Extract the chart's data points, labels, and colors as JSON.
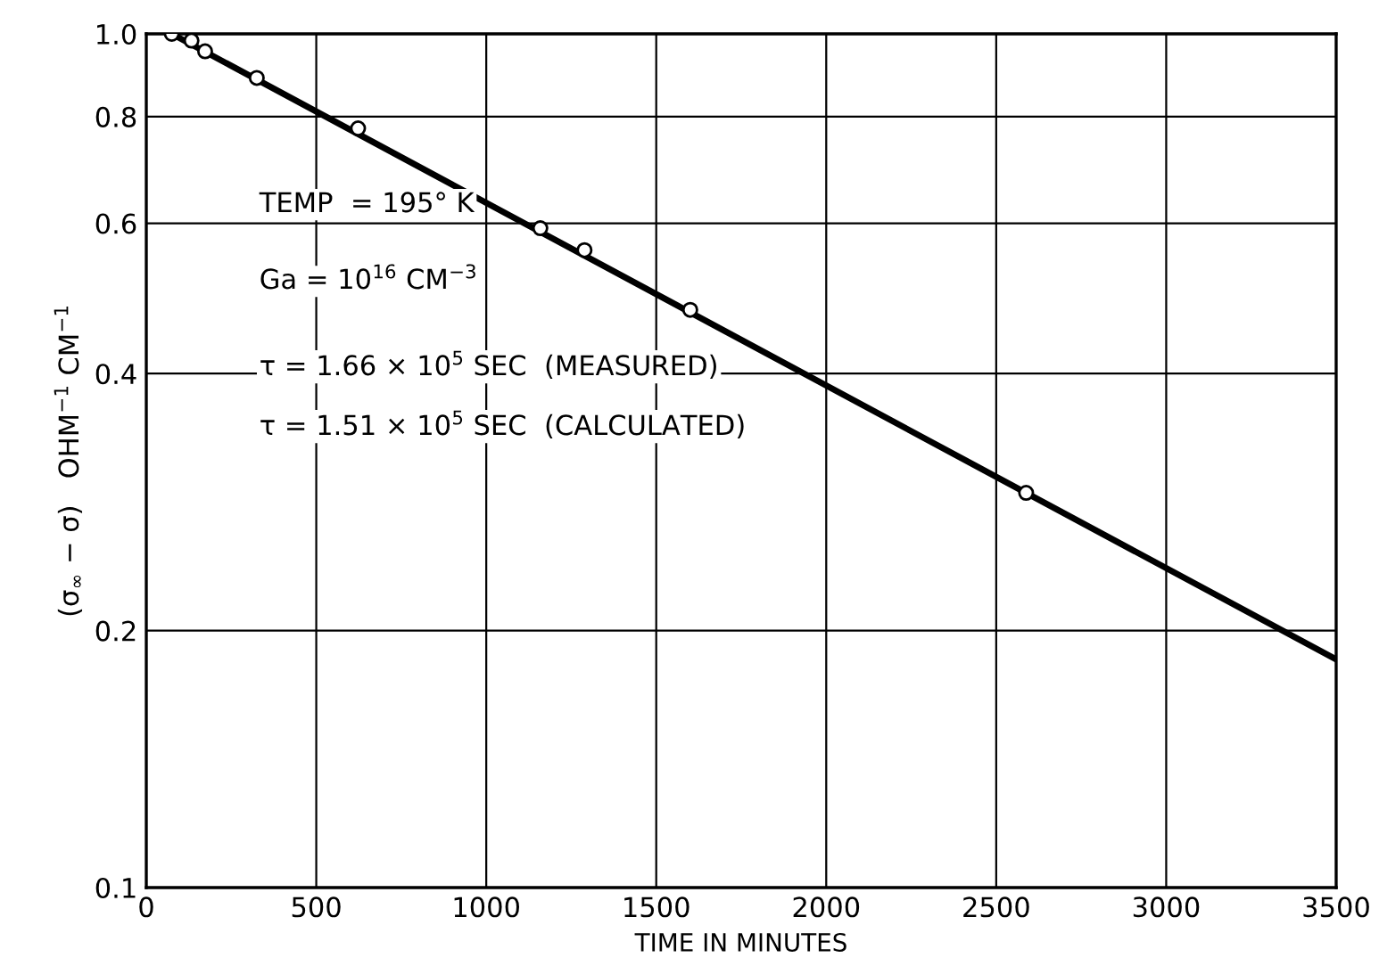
{
  "chart_data": {
    "type": "line",
    "xlabel": "TIME IN MINUTES",
    "ylabel": "(σ$_{∞}$ − σ)   OHM$^{−1}$ CM$^{−1}$",
    "log": "y",
    "grid": true,
    "xlim": [
      0,
      3500
    ],
    "xticks": [
      0,
      500,
      1000,
      1500,
      2000,
      2500,
      3000,
      3500
    ],
    "ylim": [
      0.1,
      1.0
    ],
    "yticks": [
      0.1,
      0.2,
      0.4,
      0.6,
      0.8,
      {
        "value": 1,
        "label": "1.0"
      }
    ],
    "series": [
      {
        "type": "scatter",
        "marker": "circle",
        "color": "#000000",
        "x": [
          75,
          133,
          173,
          325,
          623,
          1159,
          1289,
          1600,
          2588
        ],
        "values": [
          1.0,
          0.982,
          0.954,
          0.888,
          0.775,
          0.592,
          0.558,
          0.475,
          0.29
        ]
      },
      {
        "marker": "none",
        "color": "#000000",
        "line_style": "solid",
        "x": [
          75,
          3500
        ],
        "values": [
          1.0,
          0.185
        ]
      }
    ],
    "annotations": [
      "TEMP  = 195° K",
      "Ga = 10$^{16}$ CM$^{−3}$",
      "τ = 1.66 × 10$^{5}$ SEC  (MEASURED)",
      "τ = 1.51 × 10$^{5}$ SEC  (CALCULATED)"
    ]
  }
}
